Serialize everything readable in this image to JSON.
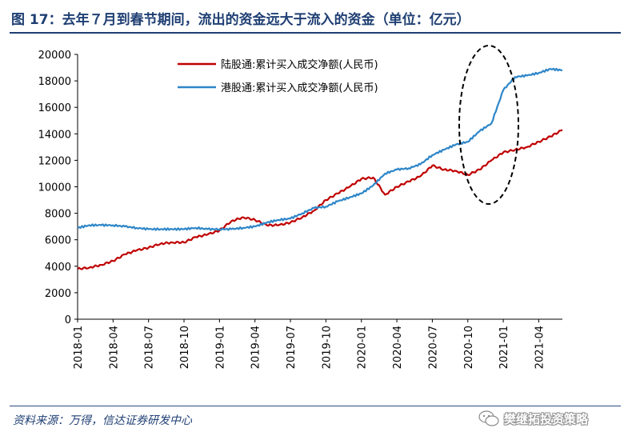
{
  "title": "图 17：去年７月到春节期间，流出的资金远大于流入的资金（单位：亿元）",
  "source": "资料来源：万得，信达证券研发中心",
  "watermark": "樊继拓投资策略",
  "colors": {
    "north": "#c00000",
    "south": "#2e86c8",
    "title": "#1f3f73",
    "annotation": "#000000"
  },
  "chart_data": {
    "type": "line",
    "ylim": [
      0,
      20000
    ],
    "yticks": [
      0,
      2000,
      4000,
      6000,
      8000,
      10000,
      12000,
      14000,
      16000,
      18000,
      20000
    ],
    "xticks": [
      "2018-01",
      "2018-04",
      "2018-07",
      "2018-10",
      "2019-01",
      "2019-04",
      "2019-07",
      "2019-10",
      "2020-01",
      "2020-04",
      "2020-07",
      "2020-10",
      "2021-01",
      "2021-04"
    ],
    "xlim": [
      "2018-01",
      "2021-06"
    ],
    "legend_position": "top-center",
    "annotation": "dashed ellipse highlighting Oct 2020 – Feb 2021",
    "series": [
      {
        "name": "陆股通:累计买入成交净额(人民币)",
        "color": "#c00000",
        "x": [
          "2018-01",
          "2018-02",
          "2018-03",
          "2018-04",
          "2018-05",
          "2018-06",
          "2018-07",
          "2018-08",
          "2018-09",
          "2018-10",
          "2018-11",
          "2018-12",
          "2019-01",
          "2019-02",
          "2019-03",
          "2019-04",
          "2019-05",
          "2019-06",
          "2019-07",
          "2019-08",
          "2019-09",
          "2019-10",
          "2019-11",
          "2019-12",
          "2020-01",
          "2020-02",
          "2020-03",
          "2020-04",
          "2020-05",
          "2020-06",
          "2020-07",
          "2020-08",
          "2020-09",
          "2020-10",
          "2020-11",
          "2020-12",
          "2021-01",
          "2021-02",
          "2021-03",
          "2021-04",
          "2021-05",
          "2021-06"
        ],
        "y": [
          3800,
          3900,
          4100,
          4400,
          4900,
          5200,
          5400,
          5700,
          5800,
          5800,
          6200,
          6400,
          6700,
          7400,
          7700,
          7500,
          7100,
          7100,
          7300,
          7700,
          8200,
          9000,
          9500,
          10000,
          10600,
          10700,
          9400,
          10000,
          10400,
          10800,
          11600,
          11300,
          11200,
          10900,
          11300,
          12000,
          12600,
          12800,
          13000,
          13400,
          13800,
          14300
        ]
      },
      {
        "name": "港股通:累计买入成交净额(人民币)",
        "color": "#2e86c8",
        "x": [
          "2018-01",
          "2018-02",
          "2018-03",
          "2018-04",
          "2018-05",
          "2018-06",
          "2018-07",
          "2018-08",
          "2018-09",
          "2018-10",
          "2018-11",
          "2018-12",
          "2019-01",
          "2019-02",
          "2019-03",
          "2019-04",
          "2019-05",
          "2019-06",
          "2019-07",
          "2019-08",
          "2019-09",
          "2019-10",
          "2019-11",
          "2019-12",
          "2020-01",
          "2020-02",
          "2020-03",
          "2020-04",
          "2020-05",
          "2020-06",
          "2020-07",
          "2020-08",
          "2020-09",
          "2020-10",
          "2020-11",
          "2020-12",
          "2021-01",
          "2021-02",
          "2021-03",
          "2021-04",
          "2021-05",
          "2021-06"
        ],
        "y": [
          6900,
          7100,
          7100,
          7100,
          7000,
          6900,
          6800,
          6800,
          6800,
          6800,
          6900,
          6800,
          6800,
          6800,
          6900,
          7000,
          7300,
          7500,
          7600,
          8000,
          8400,
          8500,
          8900,
          9200,
          9500,
          10100,
          11000,
          11300,
          11400,
          11700,
          12400,
          12800,
          13200,
          13400,
          14200,
          14800,
          17300,
          18300,
          18400,
          18600,
          18900,
          18800
        ]
      }
    ]
  }
}
